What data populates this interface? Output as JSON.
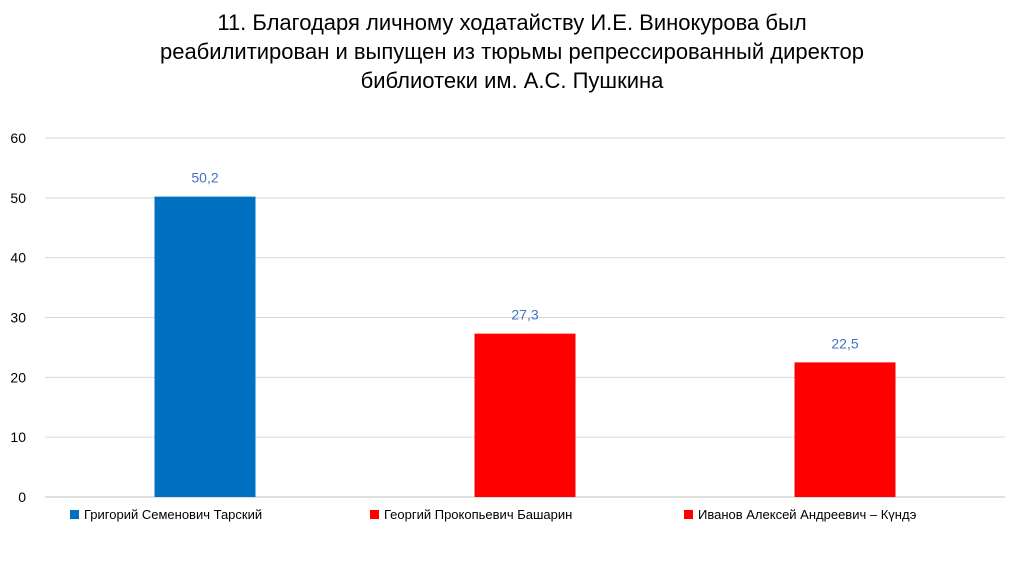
{
  "chart_data": {
    "type": "bar",
    "title_lines": [
      "11. Благодаря личному ходатайству И.Е. Винокурова был",
      "реабилитирован и выпущен из тюрьмы репрессированный директор",
      "библиотеки им. А.С. Пушкина"
    ],
    "categories": [
      "Григорий Семенович Тарский",
      "Георгий Прокопьевич Башарин",
      "Иванов Алексей Андреевич – Күндэ"
    ],
    "values": [
      50.2,
      27.3,
      22.5
    ],
    "value_labels": [
      "50,2",
      "27,3",
      "22,5"
    ],
    "colors": [
      "#0070c0",
      "#ff0000",
      "#ff0000"
    ],
    "label_color": "#4472c4",
    "ylim": [
      0,
      60
    ],
    "yticks": [
      0,
      10,
      20,
      30,
      40,
      50,
      60
    ],
    "grid": true,
    "legend_position": "bottom"
  }
}
